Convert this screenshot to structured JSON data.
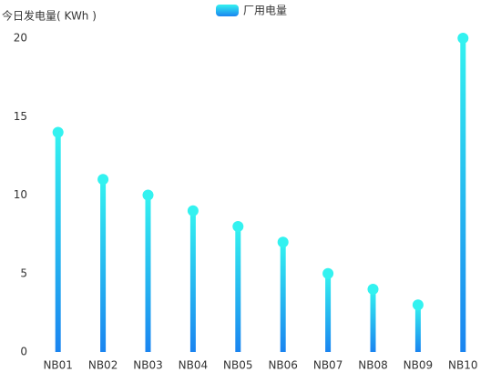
{
  "chart_data": {
    "type": "bar",
    "y_label": "今日发电量( KWh )",
    "categories": [
      "NB01",
      "NB02",
      "NB03",
      "NB04",
      "NB05",
      "NB06",
      "NB07",
      "NB08",
      "NB09",
      "NB10"
    ],
    "series": [
      {
        "name": "厂用电量",
        "color": "#1a84f0",
        "values": [
          14,
          11,
          10,
          9,
          8,
          7,
          5,
          4,
          3,
          20
        ]
      }
    ],
    "top_color": "#33f2f0",
    "ylim": [
      0,
      20
    ],
    "yticks": [
      0,
      5,
      10,
      15,
      20
    ],
    "grid": false,
    "legend": "top"
  }
}
